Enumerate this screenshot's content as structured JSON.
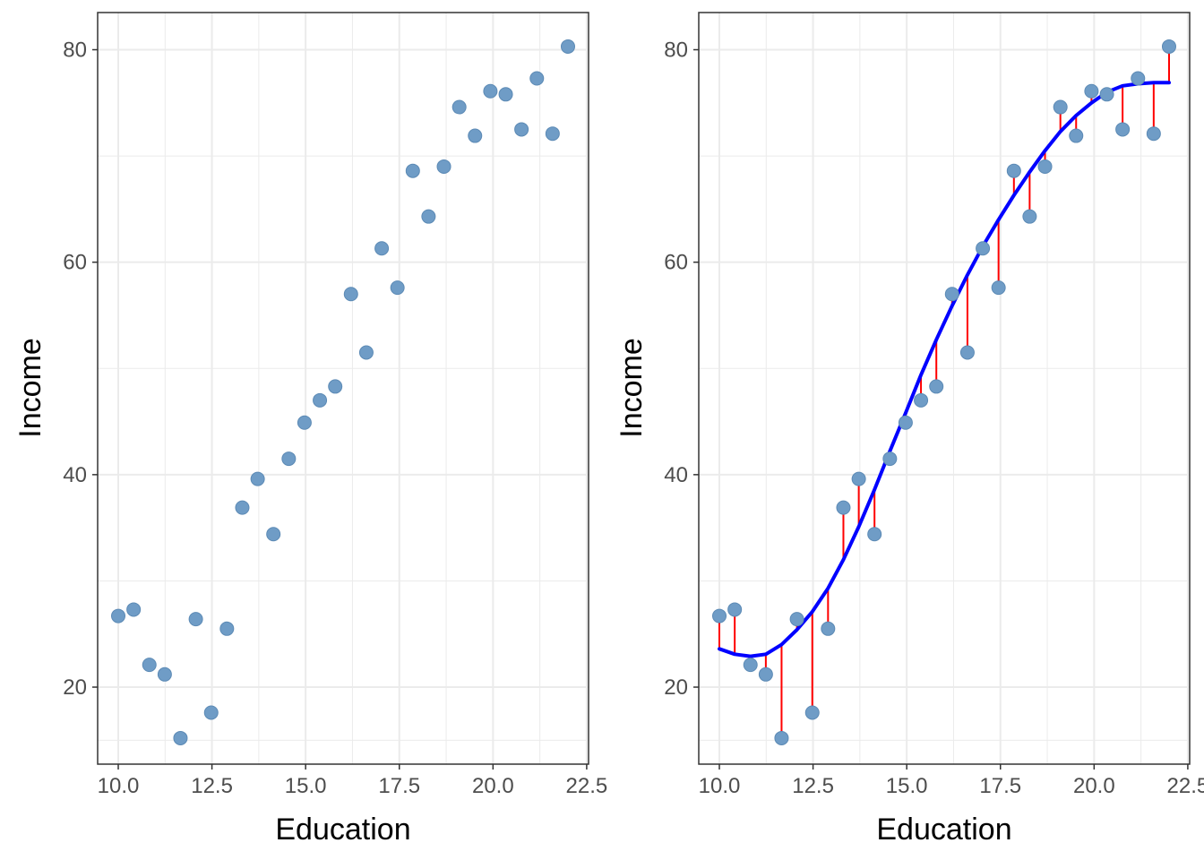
{
  "colors": {
    "point": "#6f9cc6",
    "point_stroke": "#5c8ab5",
    "fit_line": "#0000ff",
    "residual": "#ff0000",
    "grid": "#ebebeb",
    "panel_border": "#333333",
    "tick_text": "#4d4d4d"
  },
  "chart_data": [
    {
      "type": "scatter",
      "xlabel": "Education",
      "ylabel": "Income",
      "xlim": [
        9.45,
        22.55
      ],
      "ylim": [
        12.75,
        83.5
      ],
      "x_ticks": [
        10.0,
        12.5,
        15.0,
        17.5,
        20.0,
        22.5
      ],
      "x_tick_labels": [
        "10.0",
        "12.5",
        "15.0",
        "17.5",
        "20.0",
        "22.5"
      ],
      "y_ticks": [
        20,
        40,
        60,
        80
      ],
      "y_tick_labels": [
        "20",
        "40",
        "60",
        "80"
      ],
      "grid": true,
      "x": [
        10.0,
        10.41,
        10.83,
        11.24,
        11.66,
        12.07,
        12.48,
        12.9,
        13.31,
        13.72,
        14.14,
        14.55,
        14.97,
        15.38,
        15.79,
        16.21,
        16.62,
        17.03,
        17.45,
        17.86,
        18.28,
        18.69,
        19.1,
        19.52,
        19.93,
        20.34,
        20.76,
        21.17,
        21.59,
        22.0
      ],
      "y": [
        26.7,
        27.3,
        22.1,
        21.2,
        15.2,
        26.4,
        17.6,
        25.5,
        36.9,
        39.6,
        34.4,
        41.5,
        44.9,
        47.0,
        48.3,
        57.0,
        51.5,
        61.3,
        57.6,
        68.6,
        64.3,
        69.0,
        74.6,
        71.9,
        76.1,
        75.8,
        72.5,
        77.3,
        72.1,
        80.3
      ]
    },
    {
      "type": "scatter",
      "xlabel": "Education",
      "ylabel": "Income",
      "xlim": [
        9.45,
        22.55
      ],
      "ylim": [
        12.75,
        83.5
      ],
      "x_ticks": [
        10.0,
        12.5,
        15.0,
        17.5,
        20.0,
        22.5
      ],
      "x_tick_labels": [
        "10.0",
        "12.5",
        "15.0",
        "17.5",
        "20.0",
        "22.5"
      ],
      "y_ticks": [
        20,
        40,
        60,
        80
      ],
      "y_tick_labels": [
        "20",
        "40",
        "60",
        "80"
      ],
      "grid": true,
      "x": [
        10.0,
        10.41,
        10.83,
        11.24,
        11.66,
        12.07,
        12.48,
        12.9,
        13.31,
        13.72,
        14.14,
        14.55,
        14.97,
        15.38,
        15.79,
        16.21,
        16.62,
        17.03,
        17.45,
        17.86,
        18.28,
        18.69,
        19.1,
        19.52,
        19.93,
        20.34,
        20.76,
        21.17,
        21.59,
        22.0
      ],
      "y": [
        26.7,
        27.3,
        22.1,
        21.2,
        15.2,
        26.4,
        17.6,
        25.5,
        36.9,
        39.6,
        34.4,
        41.5,
        44.9,
        47.0,
        48.3,
        57.0,
        51.5,
        61.3,
        57.6,
        68.6,
        64.3,
        69.0,
        74.6,
        71.9,
        76.1,
        75.8,
        72.5,
        77.3,
        72.1,
        80.3
      ],
      "fitted": [
        23.6,
        23.1,
        22.9,
        23.1,
        24.0,
        25.4,
        27.1,
        29.3,
        32.0,
        35.1,
        38.6,
        42.2,
        45.8,
        49.4,
        52.7,
        55.9,
        58.8,
        61.5,
        64.0,
        66.3,
        68.5,
        70.5,
        72.3,
        73.8,
        75.0,
        76.0,
        76.6,
        76.8,
        76.9,
        76.9
      ]
    }
  ]
}
